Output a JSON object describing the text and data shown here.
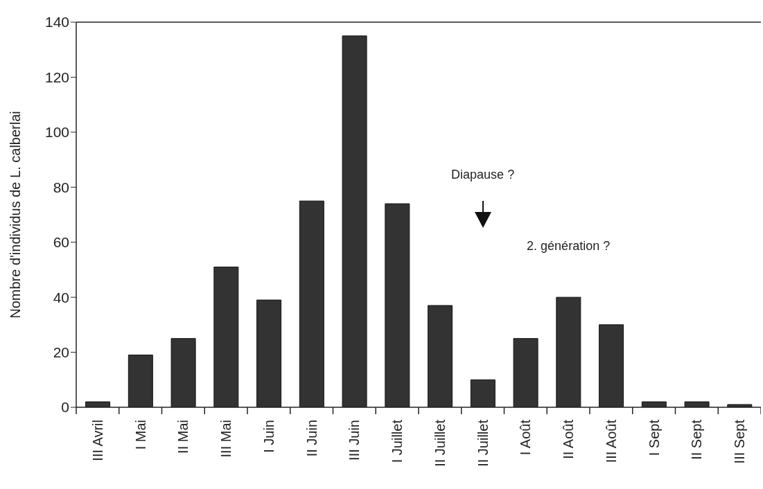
{
  "chart_data": {
    "type": "bar",
    "ylabel": "Nombre d'individus de L. calberlai",
    "categories": [
      "III Avril",
      "I Mai",
      "II Mai",
      "III Mai",
      "I Juin",
      "II Juin",
      "III Juin",
      "I Juillet",
      "II Juillet",
      "II Juillet",
      "I Août",
      "II Août",
      "III Août",
      "I Sept",
      "II Sept",
      "III Sept"
    ],
    "values": [
      2,
      19,
      25,
      51,
      39,
      75,
      135,
      74,
      37,
      10,
      25,
      40,
      30,
      2,
      2,
      1
    ],
    "color": "#333333",
    "ylim": [
      0,
      140
    ],
    "yticks": [
      0,
      20,
      40,
      60,
      80,
      100,
      120,
      140
    ],
    "annotations": [
      "Diapause ?",
      "2. génération ?"
    ]
  }
}
